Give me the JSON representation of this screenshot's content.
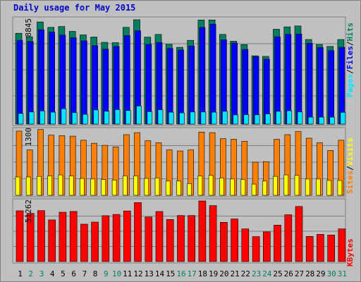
{
  "title": "Daily usage for May 2015",
  "colors": {
    "pages": "#00e5ff",
    "files": "#0000ff",
    "hits": "#007f5f",
    "visits": "#ffff00",
    "sites": "#ff8000",
    "kbytes": "#ff0000",
    "weekday_label": "#000000",
    "weekend_label": "#007f5f"
  },
  "chart_data": [
    {
      "type": "bar",
      "categories": [
        "1",
        "2",
        "3",
        "4",
        "5",
        "6",
        "7",
        "8",
        "9",
        "10",
        "11",
        "12",
        "13",
        "14",
        "15",
        "16",
        "17",
        "18",
        "19",
        "20",
        "21",
        "22",
        "23",
        "24",
        "25",
        "26",
        "27",
        "28",
        "29",
        "30",
        "31"
      ],
      "weekend_days": [
        "2",
        "3",
        "9",
        "10",
        "16",
        "17",
        "23",
        "24",
        "30",
        "31"
      ],
      "side_label": [
        "Pages",
        "Files",
        "Hits"
      ],
      "y_max_label": "8845",
      "ylim": [
        0,
        8845
      ],
      "series": [
        {
          "name": "Hits",
          "values": [
            7700,
            7400,
            8660,
            8200,
            8270,
            7860,
            7560,
            7380,
            6930,
            6900,
            8200,
            8845,
            7370,
            7600,
            6760,
            6510,
            7100,
            8825,
            8825,
            7600,
            7030,
            6740,
            5790,
            5740,
            8040,
            8240,
            8320,
            7170,
            6750,
            6580,
            7170
          ]
        },
        {
          "name": "Files",
          "values": [
            7100,
            6990,
            8000,
            7800,
            7550,
            7320,
            7060,
            6640,
            6350,
            6580,
            7500,
            7910,
            6760,
            6920,
            6410,
            6280,
            6620,
            8200,
            8470,
            7140,
            6870,
            6330,
            5720,
            5500,
            7400,
            7610,
            7630,
            6850,
            6490,
            6230,
            6510
          ]
        },
        {
          "name": "Pages",
          "values": [
            900,
            1030,
            1120,
            1010,
            1300,
            970,
            830,
            1200,
            1090,
            1230,
            1150,
            1530,
            1060,
            1210,
            1010,
            950,
            1030,
            1030,
            1010,
            1080,
            780,
            800,
            780,
            860,
            1080,
            1130,
            1030,
            590,
            590,
            590,
            1000
          ]
        }
      ]
    },
    {
      "type": "bar",
      "categories": [
        "1",
        "2",
        "3",
        "4",
        "5",
        "6",
        "7",
        "8",
        "9",
        "10",
        "11",
        "12",
        "13",
        "14",
        "15",
        "16",
        "17",
        "18",
        "19",
        "20",
        "21",
        "22",
        "23",
        "24",
        "25",
        "26",
        "27",
        "28",
        "29",
        "30",
        "31"
      ],
      "side_label": [
        "Sites",
        "Visits"
      ],
      "y_max_label": "1300",
      "ylim": [
        0,
        1300
      ],
      "series": [
        {
          "name": "Visits",
          "values": [
            1260,
            890,
            1290,
            1180,
            1170,
            1160,
            1080,
            1020,
            980,
            950,
            1190,
            1230,
            1070,
            1030,
            890,
            870,
            890,
            1240,
            1230,
            1110,
            1100,
            1060,
            650,
            660,
            1100,
            1190,
            1250,
            1120,
            1030,
            880,
            1080
          ]
        },
        {
          "name": "Sites",
          "values": [
            360,
            360,
            370,
            380,
            400,
            380,
            330,
            320,
            310,
            300,
            380,
            380,
            330,
            340,
            280,
            280,
            230,
            380,
            390,
            340,
            320,
            310,
            220,
            280,
            370,
            400,
            390,
            320,
            320,
            290,
            290
          ]
        }
      ]
    },
    {
      "type": "bar",
      "categories": [
        "1",
        "2",
        "3",
        "4",
        "5",
        "6",
        "7",
        "8",
        "9",
        "10",
        "11",
        "12",
        "13",
        "14",
        "15",
        "16",
        "17",
        "18",
        "19",
        "20",
        "21",
        "22",
        "23",
        "24",
        "25",
        "26",
        "27",
        "28",
        "29",
        "30",
        "31"
      ],
      "side_label": [
        "KBytes"
      ],
      "y_max_label": "51262",
      "ylim": [
        0,
        51262
      ],
      "series": [
        {
          "name": "KBytes",
          "values": [
            42900,
            40800,
            43100,
            35200,
            41700,
            42400,
            31600,
            33400,
            38800,
            39900,
            42800,
            49900,
            37700,
            42300,
            35600,
            38900,
            38900,
            51262,
            47300,
            33200,
            36000,
            27600,
            21100,
            25100,
            30800,
            39600,
            46600,
            21300,
            23000,
            22400,
            27600
          ]
        }
      ]
    }
  ]
}
